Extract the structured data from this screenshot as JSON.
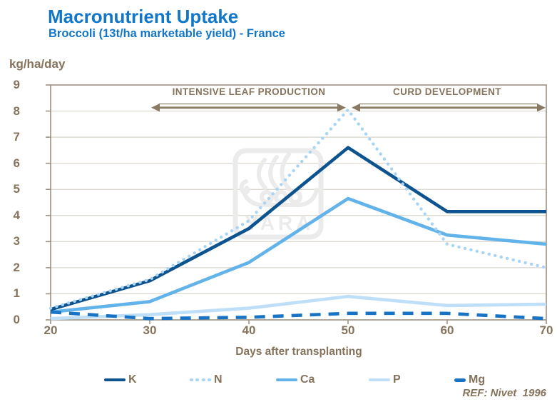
{
  "title": "Macronutrient Uptake",
  "subtitle": "Broccoli (13t/ha marketable yield) -  France",
  "ref_text": "REF: Nivet  1996",
  "watermark": {
    "text": "YARA"
  },
  "colors": {
    "title_blue": "#1277C8",
    "text_brown": "#86735C",
    "axis_frame": "#9C9184",
    "gridline": "#D9D4CB",
    "arrow_brown": "#8A7A64",
    "watermark_gray": "#EBEBEB"
  },
  "chart_data": {
    "type": "line",
    "x": [
      20,
      30,
      40,
      50,
      60,
      70
    ],
    "xticks": [
      20,
      30,
      40,
      50,
      60,
      70
    ],
    "yticks": [
      0,
      1,
      2,
      3,
      4,
      5,
      6,
      7,
      8,
      9
    ],
    "xlim": [
      20,
      70
    ],
    "ylim": [
      0,
      9
    ],
    "xlabel": "Days after transplanting",
    "ylabel": "kg/ha/day",
    "grid": "horizontal",
    "legend_position": "bottom",
    "series": [
      {
        "name": "K",
        "color": "#0D538F",
        "style": "solid",
        "values": [
          0.4,
          1.5,
          3.5,
          6.6,
          4.15,
          4.15
        ]
      },
      {
        "name": "N",
        "color": "#A9D5F5",
        "style": "dotted",
        "values": [
          0.45,
          1.55,
          3.8,
          8.05,
          2.9,
          2.0
        ]
      },
      {
        "name": "Ca",
        "color": "#63B3EB",
        "style": "solid",
        "values": [
          0.3,
          0.7,
          2.2,
          4.65,
          3.25,
          2.9
        ]
      },
      {
        "name": "P",
        "color": "#BEDFF7",
        "style": "solid",
        "values": [
          0.05,
          0.2,
          0.45,
          0.9,
          0.55,
          0.6
        ]
      },
      {
        "name": "Mg",
        "color": "#1973C5",
        "style": "dashed",
        "values": [
          0.3,
          0.05,
          0.1,
          0.25,
          0.25,
          0.05
        ]
      }
    ],
    "annotations": [
      {
        "label": "INTENSIVE LEAF PRODUCTION",
        "from_x": 30,
        "to_x": 50
      },
      {
        "label": "CURD DEVELOPMENT",
        "from_x": 50,
        "to_x": 70
      }
    ]
  }
}
